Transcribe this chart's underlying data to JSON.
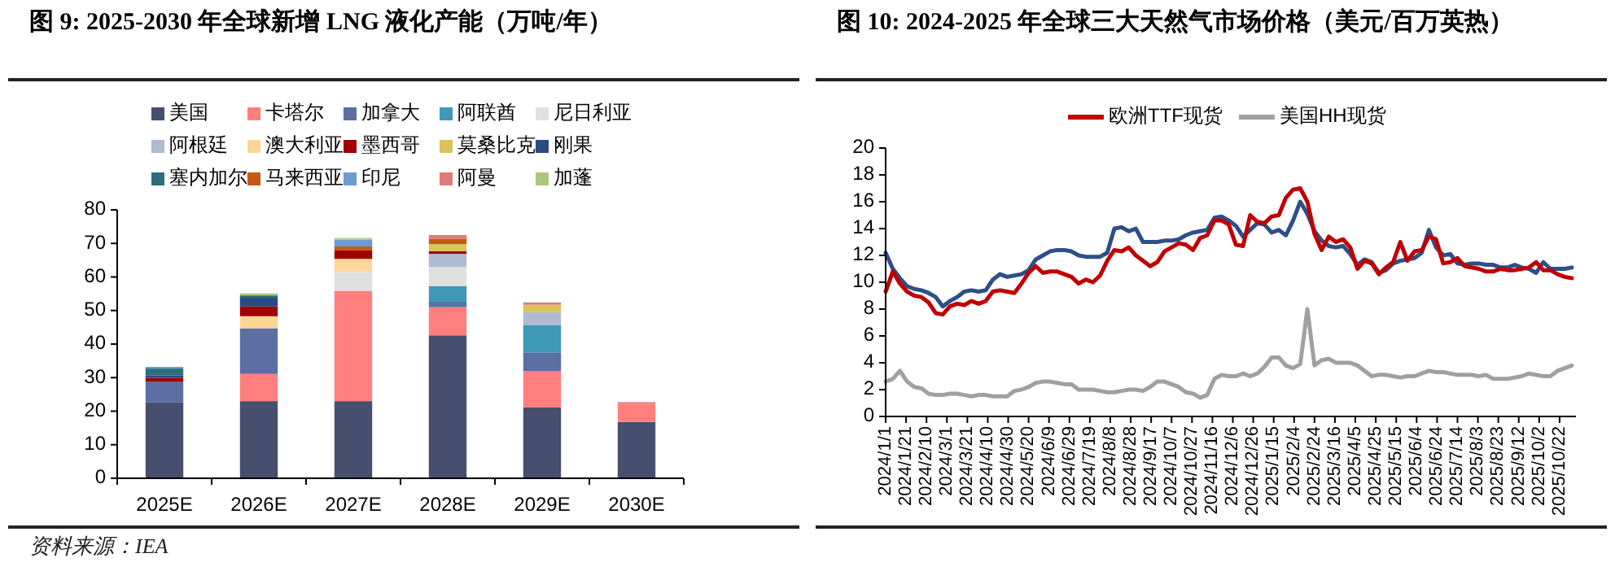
{
  "chart_data": [
    {
      "type": "bar",
      "stacked": true,
      "title": "图 9:  2025-2030 年全球新增 LNG 液化产能（万吨/年）",
      "categories": [
        "2025E",
        "2026E",
        "2027E",
        "2028E",
        "2029E",
        "2030E"
      ],
      "ylim": [
        0,
        80
      ],
      "yticks": [
        0,
        10,
        20,
        30,
        40,
        50,
        60,
        70,
        80
      ],
      "legend": "top",
      "annotations": [
        "资料来源：IEA"
      ],
      "series": [
        {
          "name": "美国",
          "color": "#474f6e",
          "values": [
            22.7,
            23.0,
            23.0,
            42.6,
            21.2,
            16.8
          ]
        },
        {
          "name": "卡塔尔",
          "color": "#ff7f7f",
          "values": [
            null,
            8.1,
            32.9,
            8.4,
            10.8,
            5.4
          ]
        },
        {
          "name": "加拿大",
          "color": "#5b6fa3",
          "values": [
            6.0,
            13.6,
            null,
            1.6,
            5.5,
            null
          ]
        },
        {
          "name": "阿联酋",
          "color": "#3f98b5",
          "values": [
            null,
            null,
            null,
            4.7,
            8.2,
            null
          ]
        },
        {
          "name": "尼日利亚",
          "color": "#e0e0e0",
          "values": [
            null,
            null,
            5.6,
            5.7,
            null,
            null
          ]
        },
        {
          "name": "阿根廷",
          "color": "#b0bad0",
          "values": [
            null,
            null,
            null,
            3.9,
            3.8,
            null
          ]
        },
        {
          "name": "澳大利亚",
          "color": "#ffd699",
          "values": [
            null,
            3.6,
            3.9,
            null,
            null,
            null
          ]
        },
        {
          "name": "墨西哥",
          "color": "#a00000",
          "values": [
            1.2,
            2.9,
            2.5,
            0.8,
            null,
            null
          ]
        },
        {
          "name": "莫桑比克",
          "color": "#dcc35a",
          "values": [
            null,
            null,
            null,
            2.1,
            2.2,
            null
          ]
        },
        {
          "name": "刚果",
          "color": "#2a4a82",
          "values": [
            0.8,
            2.6,
            null,
            null,
            null,
            null
          ]
        },
        {
          "name": "塞内加尔",
          "color": "#2c6e7a",
          "values": [
            2.0,
            0.7,
            null,
            null,
            null,
            null
          ]
        },
        {
          "name": "马来西亚",
          "color": "#c55a11",
          "values": [
            null,
            null,
            1.2,
            1.5,
            null,
            null
          ]
        },
        {
          "name": "印尼",
          "color": "#6c9bd2",
          "values": [
            0.5,
            null,
            2.0,
            null,
            null,
            null
          ]
        },
        {
          "name": "阿曼",
          "color": "#e07a7a",
          "values": [
            null,
            null,
            null,
            1.2,
            0.7,
            0.5
          ]
        },
        {
          "name": "加蓬",
          "color": "#a9c97a",
          "values": [
            null,
            0.6,
            0.5,
            null,
            null,
            null
          ]
        }
      ]
    },
    {
      "type": "line",
      "title": "图 10:  2024-2025 年全球三大天然气市场价格（美元/百万英热）",
      "legend": "top",
      "xlim": [
        "2024-01-01",
        "2025-11-07"
      ],
      "ylim": [
        0,
        20
      ],
      "yticks": [
        0,
        2,
        4,
        6,
        8,
        10,
        12,
        14,
        16,
        18,
        20
      ],
      "xticks": [
        {
          "value": "2024-01-01",
          "label": "2024/1/1"
        },
        {
          "value": "2024-01-21",
          "label": "2024/1/21"
        },
        {
          "value": "2024-02-10",
          "label": "2024/2/10"
        },
        {
          "value": "2024-03-01",
          "label": "2024/3/1"
        },
        {
          "value": "2024-03-21",
          "label": "2024/3/21"
        },
        {
          "value": "2024-04-10",
          "label": "2024/4/10"
        },
        {
          "value": "2024-04-30",
          "label": "2024/4/30"
        },
        {
          "value": "2024-05-20",
          "label": "2024/5/20"
        },
        {
          "value": "2024-06-09",
          "label": "2024/6/9"
        },
        {
          "value": "2024-06-29",
          "label": "2024/6/29"
        },
        {
          "value": "2024-07-19",
          "label": "2024/7/19"
        },
        {
          "value": "2024-08-08",
          "label": "2024/8/8"
        },
        {
          "value": "2024-08-28",
          "label": "2024/8/28"
        },
        {
          "value": "2024-09-17",
          "label": "2024/9/17"
        },
        {
          "value": "2024-10-07",
          "label": "2024/10/7"
        },
        {
          "value": "2024-10-27",
          "label": "2024/10/27"
        },
        {
          "value": "2024-11-16",
          "label": "2024/11/16"
        },
        {
          "value": "2024-12-06",
          "label": "2024/12/6"
        },
        {
          "value": "2024-12-26",
          "label": "2024/12/26"
        },
        {
          "value": "2025-01-15",
          "label": "2025/1/15"
        },
        {
          "value": "2025-02-04",
          "label": "2025/2/4"
        },
        {
          "value": "2025-02-24",
          "label": "2025/2/24"
        },
        {
          "value": "2025-03-16",
          "label": "2025/3/16"
        },
        {
          "value": "2025-04-05",
          "label": "2025/4/5"
        },
        {
          "value": "2025-04-25",
          "label": "2025/4/25"
        },
        {
          "value": "2025-05-15",
          "label": "2025/5/15"
        },
        {
          "value": "2025-06-04",
          "label": "2025/6/4"
        },
        {
          "value": "2025-06-24",
          "label": "2025/6/24"
        },
        {
          "value": "2025-07-14",
          "label": "2025/7/14"
        },
        {
          "value": "2025-08-03",
          "label": "2025/8/3"
        },
        {
          "value": "2025-08-23",
          "label": "2025/8/23"
        },
        {
          "value": "2025-09-12",
          "label": "2025/9/12"
        },
        {
          "value": "2025-10-02",
          "label": "2025/10/2"
        },
        {
          "value": "2025-10-22",
          "label": "2025/10/22"
        }
      ],
      "x": [
        "2024-01-01",
        "2024-01-08",
        "2024-01-15",
        "2024-01-22",
        "2024-01-29",
        "2024-02-05",
        "2024-02-12",
        "2024-02-19",
        "2024-02-26",
        "2024-03-04",
        "2024-03-11",
        "2024-03-18",
        "2024-03-25",
        "2024-04-01",
        "2024-04-08",
        "2024-04-15",
        "2024-04-22",
        "2024-04-29",
        "2024-05-06",
        "2024-05-13",
        "2024-05-20",
        "2024-05-27",
        "2024-06-03",
        "2024-06-10",
        "2024-06-17",
        "2024-06-24",
        "2024-07-01",
        "2024-07-08",
        "2024-07-15",
        "2024-07-22",
        "2024-07-29",
        "2024-08-05",
        "2024-08-12",
        "2024-08-19",
        "2024-08-26",
        "2024-09-02",
        "2024-09-09",
        "2024-09-16",
        "2024-09-23",
        "2024-09-30",
        "2024-10-07",
        "2024-10-14",
        "2024-10-21",
        "2024-10-28",
        "2024-11-04",
        "2024-11-11",
        "2024-11-18",
        "2024-11-25",
        "2024-12-02",
        "2024-12-09",
        "2024-12-16",
        "2024-12-23",
        "2024-12-30",
        "2025-01-06",
        "2025-01-13",
        "2025-01-20",
        "2025-01-27",
        "2025-02-03",
        "2025-02-10",
        "2025-02-17",
        "2025-02-24",
        "2025-03-03",
        "2025-03-10",
        "2025-03-17",
        "2025-03-24",
        "2025-03-31",
        "2025-04-07",
        "2025-04-14",
        "2025-04-21",
        "2025-04-28",
        "2025-05-05",
        "2025-05-12",
        "2025-05-19",
        "2025-05-26",
        "2025-06-02",
        "2025-06-09",
        "2025-06-16",
        "2025-06-23",
        "2025-06-30",
        "2025-07-07",
        "2025-07-14",
        "2025-07-21",
        "2025-07-28",
        "2025-08-04",
        "2025-08-11",
        "2025-08-18",
        "2025-08-25",
        "2025-09-01",
        "2025-09-08",
        "2025-09-15",
        "2025-09-22",
        "2025-09-29",
        "2025-10-06",
        "2025-10-13",
        "2025-10-20",
        "2025-10-27",
        "2025-11-03"
      ],
      "series": [
        {
          "color": "#2e4f88",
          "values": [
            12.2,
            11.0,
            10.3,
            9.7,
            9.5,
            9.4,
            9.2,
            8.9,
            8.2,
            8.6,
            8.9,
            9.3,
            9.4,
            9.3,
            9.4,
            10.2,
            10.6,
            10.4,
            10.5,
            10.6,
            10.9,
            11.7,
            12.0,
            12.3,
            12.4,
            12.4,
            12.3,
            12.0,
            11.9,
            11.9,
            11.9,
            12.2,
            14.0,
            14.1,
            13.8,
            14.0,
            13.0,
            13.0,
            13.0,
            13.1,
            13.1,
            13.2,
            13.5,
            13.7,
            13.8,
            13.9,
            14.8,
            14.9,
            14.6,
            14.2,
            13.4,
            13.9,
            14.4,
            14.3,
            13.7,
            13.9,
            13.5,
            14.6,
            16.0,
            15.1,
            13.8,
            13.1,
            12.7,
            12.6,
            12.7,
            12.1,
            11.3,
            11.7,
            11.5,
            10.7,
            10.9,
            11.4,
            11.6,
            11.7,
            11.8,
            12.2,
            13.9,
            12.6,
            12.0,
            12.1,
            11.4,
            11.3,
            11.4,
            11.4,
            11.3,
            11.3,
            11.1,
            11.1,
            11.3,
            11.1,
            11.0,
            10.7,
            11.5,
            11.0,
            11.0,
            11.0,
            11.1
          ]
        },
        {
          "name": "欧洲TTF现货",
          "color": "#c00000",
          "values": [
            9.3,
            10.8,
            9.9,
            9.3,
            9.0,
            8.9,
            8.5,
            7.7,
            7.6,
            8.2,
            8.4,
            8.3,
            8.6,
            8.4,
            8.6,
            9.3,
            9.4,
            9.3,
            9.2,
            9.9,
            10.7,
            11.2,
            10.7,
            10.8,
            10.8,
            10.6,
            10.4,
            9.9,
            10.2,
            10.0,
            10.5,
            11.6,
            12.4,
            12.3,
            12.6,
            12.0,
            11.6,
            11.2,
            11.5,
            12.3,
            12.6,
            12.9,
            12.8,
            12.4,
            13.3,
            13.5,
            14.6,
            14.6,
            14.3,
            12.8,
            12.7,
            15.0,
            14.5,
            14.4,
            14.9,
            15.0,
            16.3,
            16.9,
            17.0,
            16.0,
            13.6,
            12.4,
            13.4,
            13.0,
            13.2,
            12.6,
            11.0,
            11.6,
            11.4,
            10.6,
            11.1,
            11.5,
            13.0,
            11.6,
            12.3,
            12.4,
            13.4,
            13.2,
            11.4,
            11.5,
            11.8,
            11.2,
            11.1,
            11.0,
            10.8,
            10.8,
            11.0,
            10.9,
            10.9,
            11.0,
            11.1,
            11.5,
            10.9,
            10.9,
            10.6,
            10.4,
            10.3
          ]
        },
        {
          "name": "美国HH现货",
          "color": "#a0a0a0",
          "values": [
            2.6,
            2.8,
            3.4,
            2.6,
            2.2,
            2.1,
            1.7,
            1.6,
            1.6,
            1.7,
            1.7,
            1.6,
            1.5,
            1.6,
            1.6,
            1.5,
            1.5,
            1.5,
            1.9,
            2.0,
            2.2,
            2.5,
            2.6,
            2.6,
            2.5,
            2.4,
            2.4,
            2.0,
            2.0,
            2.0,
            1.9,
            1.8,
            1.8,
            1.9,
            2.0,
            2.0,
            1.9,
            2.2,
            2.6,
            2.6,
            2.4,
            2.2,
            1.8,
            1.7,
            1.4,
            1.6,
            2.8,
            3.1,
            3.0,
            3.0,
            3.2,
            3.0,
            3.2,
            3.7,
            4.4,
            4.4,
            3.8,
            3.6,
            3.9,
            8.0,
            3.8,
            4.2,
            4.3,
            4.0,
            4.0,
            4.0,
            3.8,
            3.4,
            3.0,
            3.1,
            3.1,
            3.0,
            2.9,
            3.0,
            3.0,
            3.2,
            3.4,
            3.3,
            3.3,
            3.2,
            3.1,
            3.1,
            3.1,
            3.0,
            3.1,
            2.8,
            2.8,
            2.8,
            2.9,
            3.0,
            3.2,
            3.1,
            3.0,
            3.0,
            3.4,
            3.6,
            3.8
          ]
        }
      ]
    }
  ]
}
